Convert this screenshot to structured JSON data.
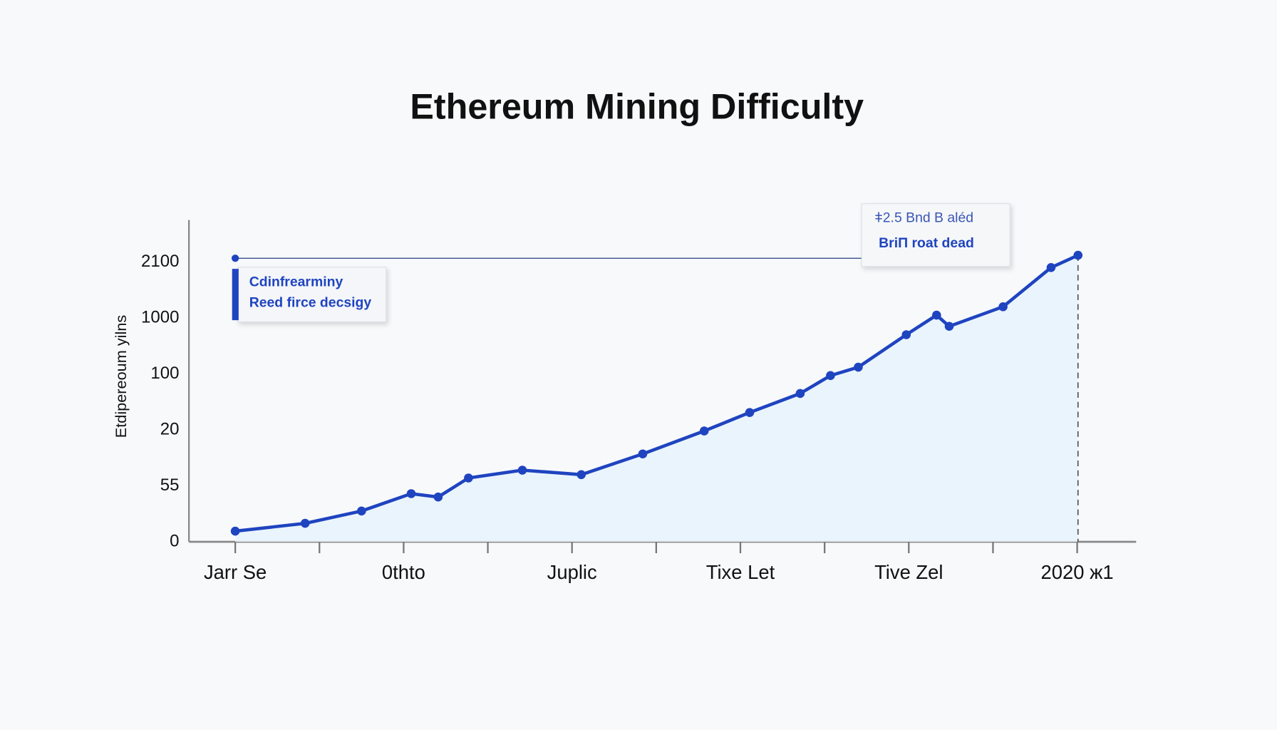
{
  "chart_data": {
    "type": "line",
    "title": "Ethereum Mining Difficulty",
    "y_label": "Etdipereoum yilns",
    "categories": [
      "Jarr Se",
      null,
      "0thto",
      null,
      "Juplic",
      null,
      "Tixe Let",
      null,
      "Tive Zel",
      null,
      "2020 ж1"
    ],
    "xlim": [
      -0.55,
      10.7
    ],
    "ylim": [
      0,
      5.75
    ],
    "yticks": [
      {
        "value": 0,
        "label": "0"
      },
      {
        "value": 1,
        "label": "55"
      },
      {
        "value": 2,
        "label": "20"
      },
      {
        "value": 3,
        "label": "100"
      },
      {
        "value": 4,
        "label": "1000"
      },
      {
        "value": 5,
        "label": "2100"
      }
    ],
    "series": [
      {
        "name": "Cdinfrearminy",
        "color": "#1f44c0",
        "x": [
          0,
          0.83,
          1.5,
          2.09,
          2.41,
          2.77,
          3.41,
          4.11,
          4.84,
          5.57,
          6.11,
          6.71,
          7.07,
          7.4,
          7.97,
          8.33,
          8.48,
          9.12,
          9.69,
          10.01
        ],
        "values": [
          0.19,
          0.33,
          0.55,
          0.86,
          0.8,
          1.14,
          1.28,
          1.2,
          1.57,
          1.98,
          2.31,
          2.65,
          2.97,
          3.12,
          3.7,
          4.05,
          3.85,
          4.2,
          4.9,
          5.12
        ]
      }
    ],
    "legend": [
      "Cdinfrearminy",
      "Reed firce decsigy"
    ],
    "callout": [
      "ǂ2.5 Bnd B aléd",
      "BriΠ roat dead"
    ]
  }
}
